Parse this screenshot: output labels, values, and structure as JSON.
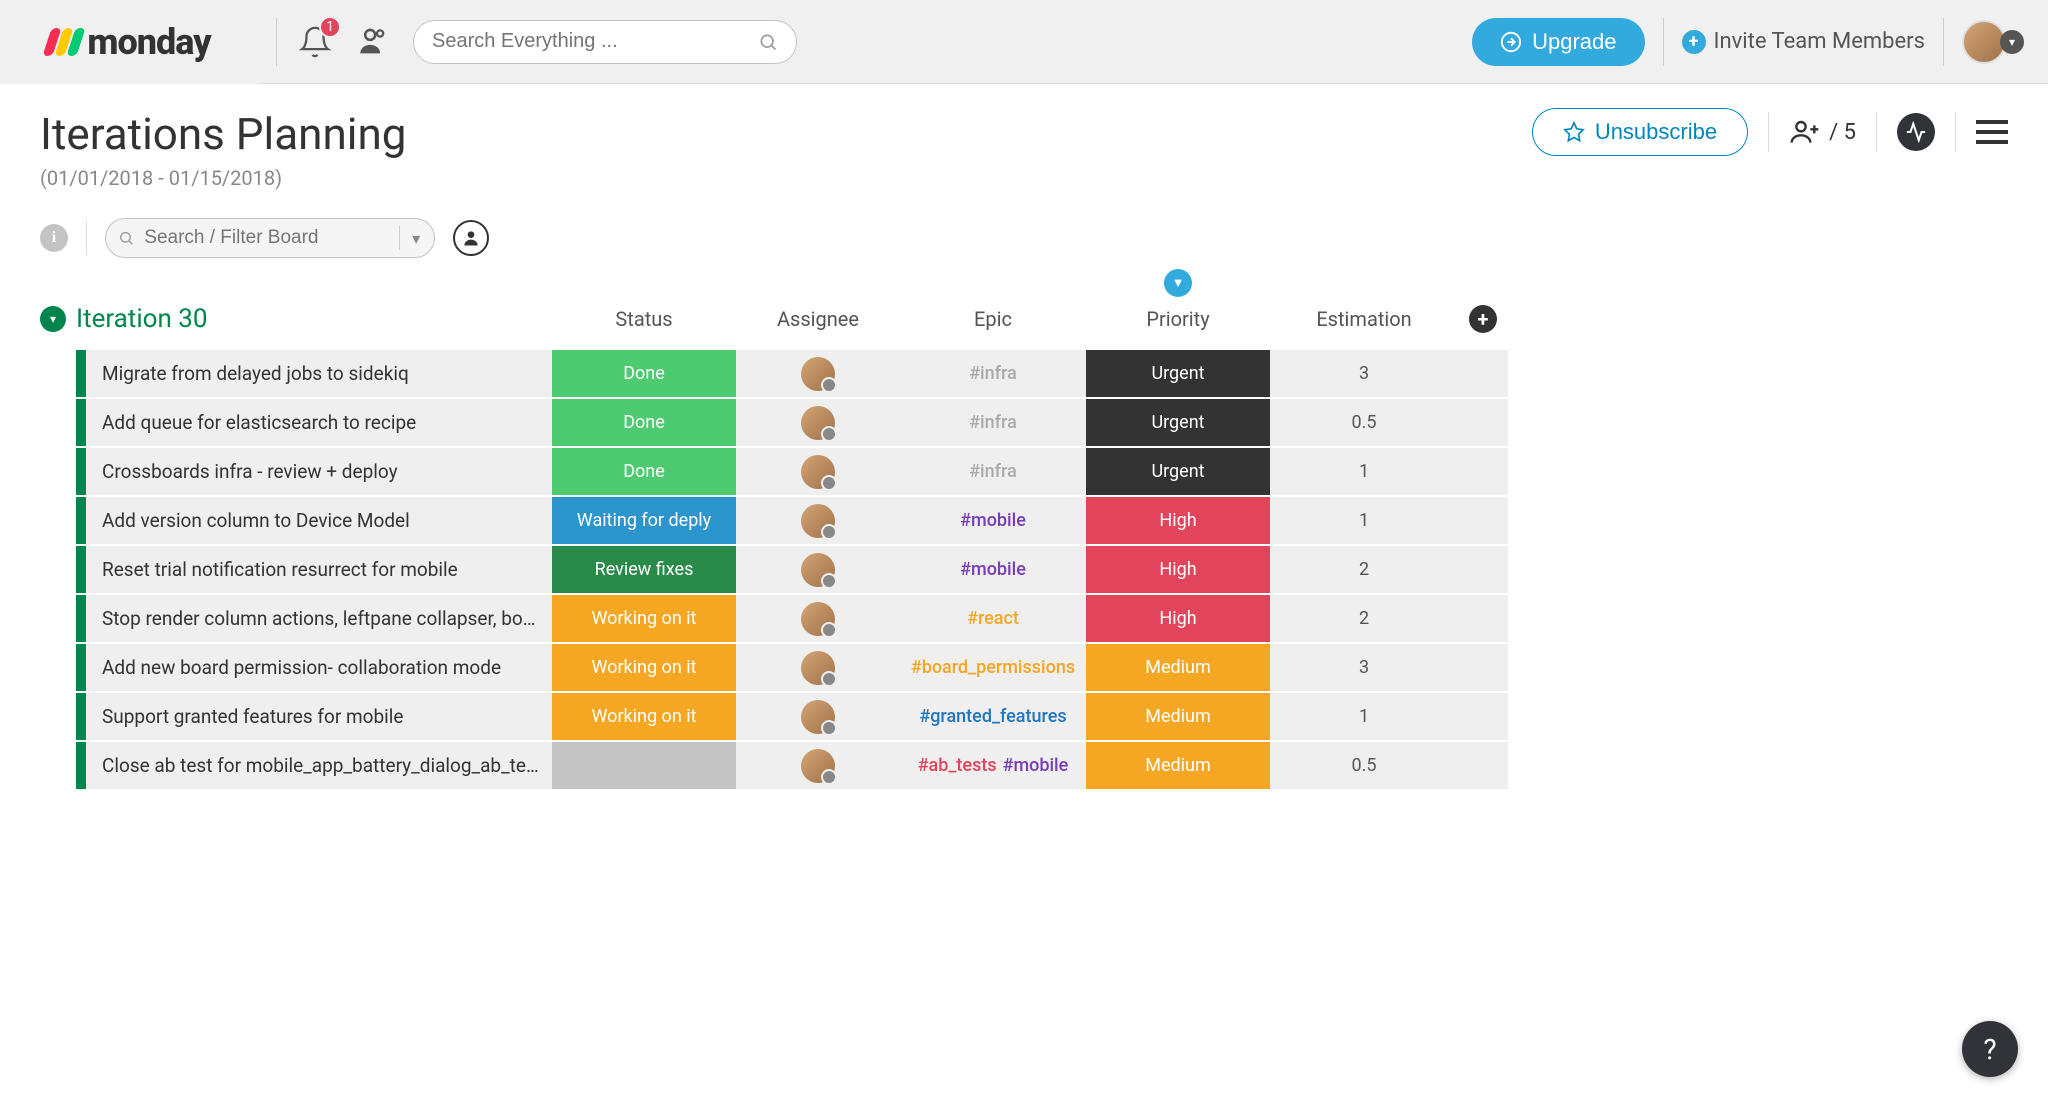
{
  "brand": {
    "name": "monday"
  },
  "topbar": {
    "notif_count": "1",
    "search_placeholder": "Search Everything ...",
    "upgrade_label": "Upgrade",
    "invite_label": "Invite Team Members"
  },
  "page": {
    "title": "Iterations Planning",
    "subtitle": "(01/01/2018 - 01/15/2018)",
    "unsubscribe_label": "Unsubscribe",
    "people_count": "/ 5",
    "filter_placeholder": "Search / Filter Board",
    "info_char": "i"
  },
  "group": {
    "title": "Iteration 30",
    "columns": {
      "status": "Status",
      "assignee": "Assignee",
      "epic": "Epic",
      "priority": "Priority",
      "estimation": "Estimation"
    },
    "color": "#00854d"
  },
  "colors": {
    "status_done": "#4eca70",
    "status_waiting": "#2b95cc",
    "status_review": "#2a8a4a",
    "status_working": "#f5a623",
    "status_empty": "#c4c4c4",
    "priority_urgent": "#333333",
    "priority_high": "#e2445c",
    "priority_medium": "#f5a623",
    "epic_infra": "#aaaaaa",
    "epic_mobile": "#7a3cb7",
    "epic_react": "#f5a623",
    "epic_board_permissions": "#f5a623",
    "epic_granted_features": "#1f76c2",
    "epic_ab_tests": "#e2445c"
  },
  "rows": [
    {
      "name": "Migrate from delayed jobs to sidekiq",
      "status": "Done",
      "status_color": "status_done",
      "epics": [
        {
          "text": "#infra",
          "color": "epic_infra"
        }
      ],
      "priority": "Urgent",
      "priority_color": "priority_urgent",
      "estimation": "3"
    },
    {
      "name": "Add queue for elasticsearch to recipe",
      "status": "Done",
      "status_color": "status_done",
      "epics": [
        {
          "text": "#infra",
          "color": "epic_infra"
        }
      ],
      "priority": "Urgent",
      "priority_color": "priority_urgent",
      "estimation": "0.5"
    },
    {
      "name": "Crossboards infra - review + deploy",
      "status": "Done",
      "status_color": "status_done",
      "epics": [
        {
          "text": "#infra",
          "color": "epic_infra"
        }
      ],
      "priority": "Urgent",
      "priority_color": "priority_urgent",
      "estimation": "1"
    },
    {
      "name": "Add version column to Device Model",
      "status": "Waiting for deply",
      "status_color": "status_waiting",
      "epics": [
        {
          "text": "#mobile",
          "color": "epic_mobile"
        }
      ],
      "priority": "High",
      "priority_color": "priority_high",
      "estimation": "1"
    },
    {
      "name": "Reset trial notification resurrect for mobile",
      "status": "Review fixes",
      "status_color": "status_review",
      "epics": [
        {
          "text": "#mobile",
          "color": "epic_mobile"
        }
      ],
      "priority": "High",
      "priority_color": "priority_high",
      "estimation": "2"
    },
    {
      "name": "Stop render column actions, leftpane collapser, bo…",
      "status": "Working on it",
      "status_color": "status_working",
      "epics": [
        {
          "text": "#react",
          "color": "epic_react"
        }
      ],
      "priority": "High",
      "priority_color": "priority_high",
      "estimation": "2"
    },
    {
      "name": "Add new board permission- collaboration mode",
      "status": "Working on it",
      "status_color": "status_working",
      "epics": [
        {
          "text": "#board_permissions",
          "color": "epic_board_permissions"
        }
      ],
      "priority": "Medium",
      "priority_color": "priority_medium",
      "estimation": "3"
    },
    {
      "name": "Support granted features for mobile",
      "status": "Working on it",
      "status_color": "status_working",
      "epics": [
        {
          "text": "#granted_features",
          "color": "epic_granted_features"
        }
      ],
      "priority": "Medium",
      "priority_color": "priority_medium",
      "estimation": "1"
    },
    {
      "name": "Close ab test for mobile_app_battery_dialog_ab_te…",
      "status": "",
      "status_color": "status_empty",
      "epics": [
        {
          "text": "#ab_tests",
          "color": "epic_ab_tests"
        },
        {
          "text": "#mobile",
          "color": "epic_mobile"
        }
      ],
      "priority": "Medium",
      "priority_color": "priority_medium",
      "estimation": "0.5"
    }
  ],
  "help_label": "?"
}
